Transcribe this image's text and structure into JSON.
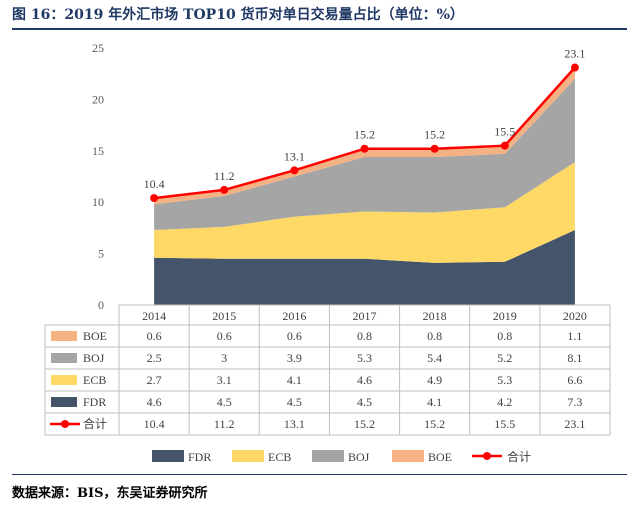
{
  "title": "图 16：2019 年外汇市场 TOP10 货币对单日交易量占比（单位：%）",
  "source": "数据来源：BIS，东吴证券研究所",
  "colors": {
    "FDR": "#44546a",
    "ECB": "#ffd966",
    "BOJ": "#a5a5a5",
    "BOE": "#f4b183",
    "合计": "#ff0000",
    "title": "#1f3864"
  },
  "chart_data": {
    "type": "area",
    "stacked": true,
    "categories": [
      "2014",
      "2015",
      "2016",
      "2017",
      "2018",
      "2019",
      "2020"
    ],
    "ylim": [
      0,
      25
    ],
    "yticks": [
      "0",
      "5",
      "10",
      "15",
      "20",
      "25"
    ],
    "gridlines": false,
    "legend_position": "bottom",
    "series": [
      {
        "name": "FDR",
        "values": [
          4.6,
          4.5,
          4.5,
          4.5,
          4.1,
          4.2,
          7.3
        ]
      },
      {
        "name": "ECB",
        "values": [
          2.7,
          3.1,
          4.1,
          4.6,
          4.9,
          5.3,
          6.6
        ]
      },
      {
        "name": "BOJ",
        "values": [
          2.5,
          3,
          3.9,
          5.3,
          5.4,
          5.2,
          8.1
        ]
      },
      {
        "name": "BOE",
        "values": [
          0.6,
          0.6,
          0.6,
          0.8,
          0.8,
          0.8,
          1.1
        ]
      }
    ],
    "total": {
      "name": "合计",
      "type": "line",
      "values": [
        10.4,
        11.2,
        13.1,
        15.2,
        15.2,
        15.5,
        23.1
      ],
      "labels": [
        "10.4",
        "11.2",
        "13.1",
        "15.2",
        "15.2",
        "15.5",
        "23.1"
      ]
    },
    "table_rows": [
      {
        "name": "BOE",
        "cells": [
          "0.6",
          "0.6",
          "0.6",
          "0.8",
          "0.8",
          "0.8",
          "1.1"
        ]
      },
      {
        "name": "BOJ",
        "cells": [
          "2.5",
          "3",
          "3.9",
          "5.3",
          "5.4",
          "5.2",
          "8.1"
        ]
      },
      {
        "name": "ECB",
        "cells": [
          "2.7",
          "3.1",
          "4.1",
          "4.6",
          "4.9",
          "5.3",
          "6.6"
        ]
      },
      {
        "name": "FDR",
        "cells": [
          "4.6",
          "4.5",
          "4.5",
          "4.5",
          "4.1",
          "4.2",
          "7.3"
        ]
      },
      {
        "name": "合计",
        "cells": [
          "10.4",
          "11.2",
          "13.1",
          "15.2",
          "15.2",
          "15.5",
          "23.1"
        ]
      }
    ],
    "legend": [
      "FDR",
      "ECB",
      "BOJ",
      "BOE",
      "合计"
    ]
  }
}
